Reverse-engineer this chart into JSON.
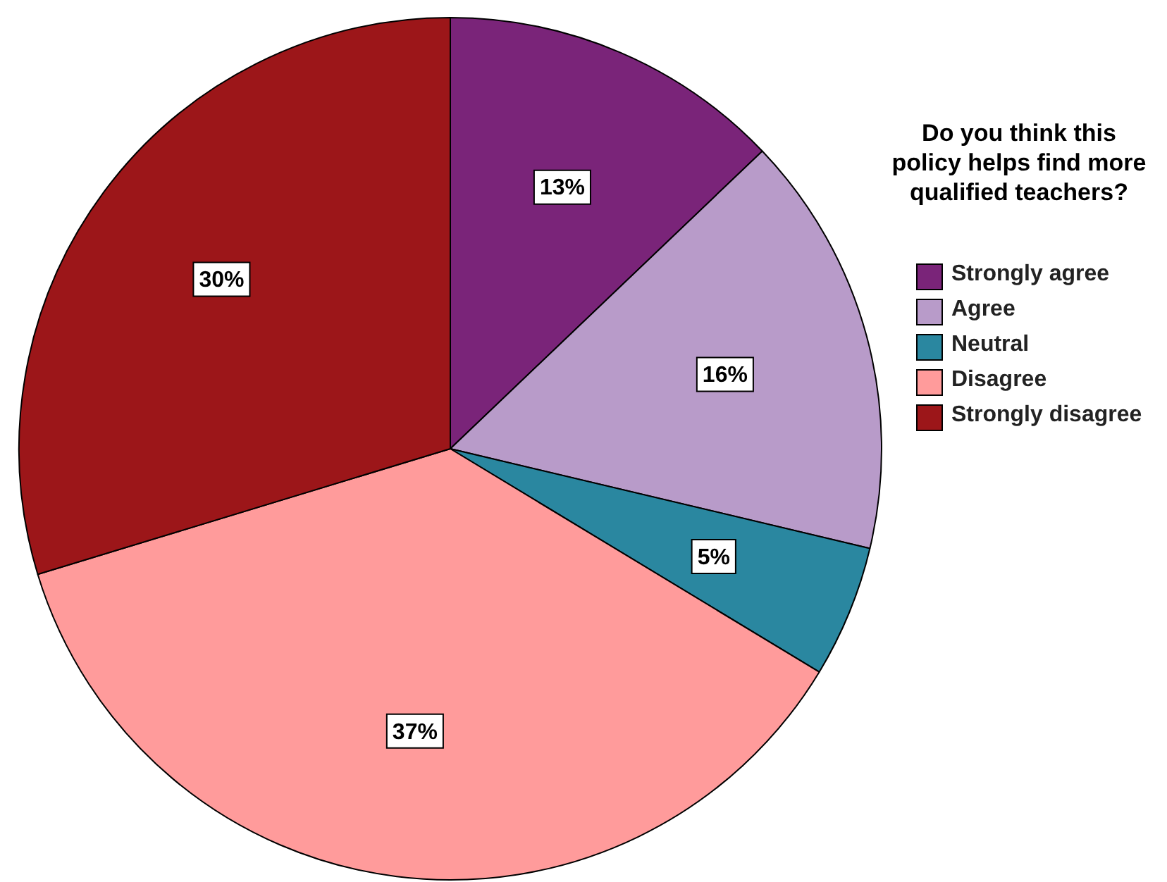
{
  "chart_data": {
    "type": "pie",
    "legend_title": "Do you think this policy helps find more qualified teachers?",
    "legend": "right",
    "categories": [
      "Strongly agree",
      "Agree",
      "Neutral",
      "Disagree",
      "Strongly disagree"
    ],
    "values": [
      13,
      16,
      5,
      37,
      30
    ],
    "value_labels": [
      "13%",
      "16%",
      "5%",
      "37%",
      "30%"
    ],
    "colors": [
      "#7a2479",
      "#b89bc9",
      "#2a87a0",
      "#ff9b9b",
      "#9c1619"
    ]
  }
}
